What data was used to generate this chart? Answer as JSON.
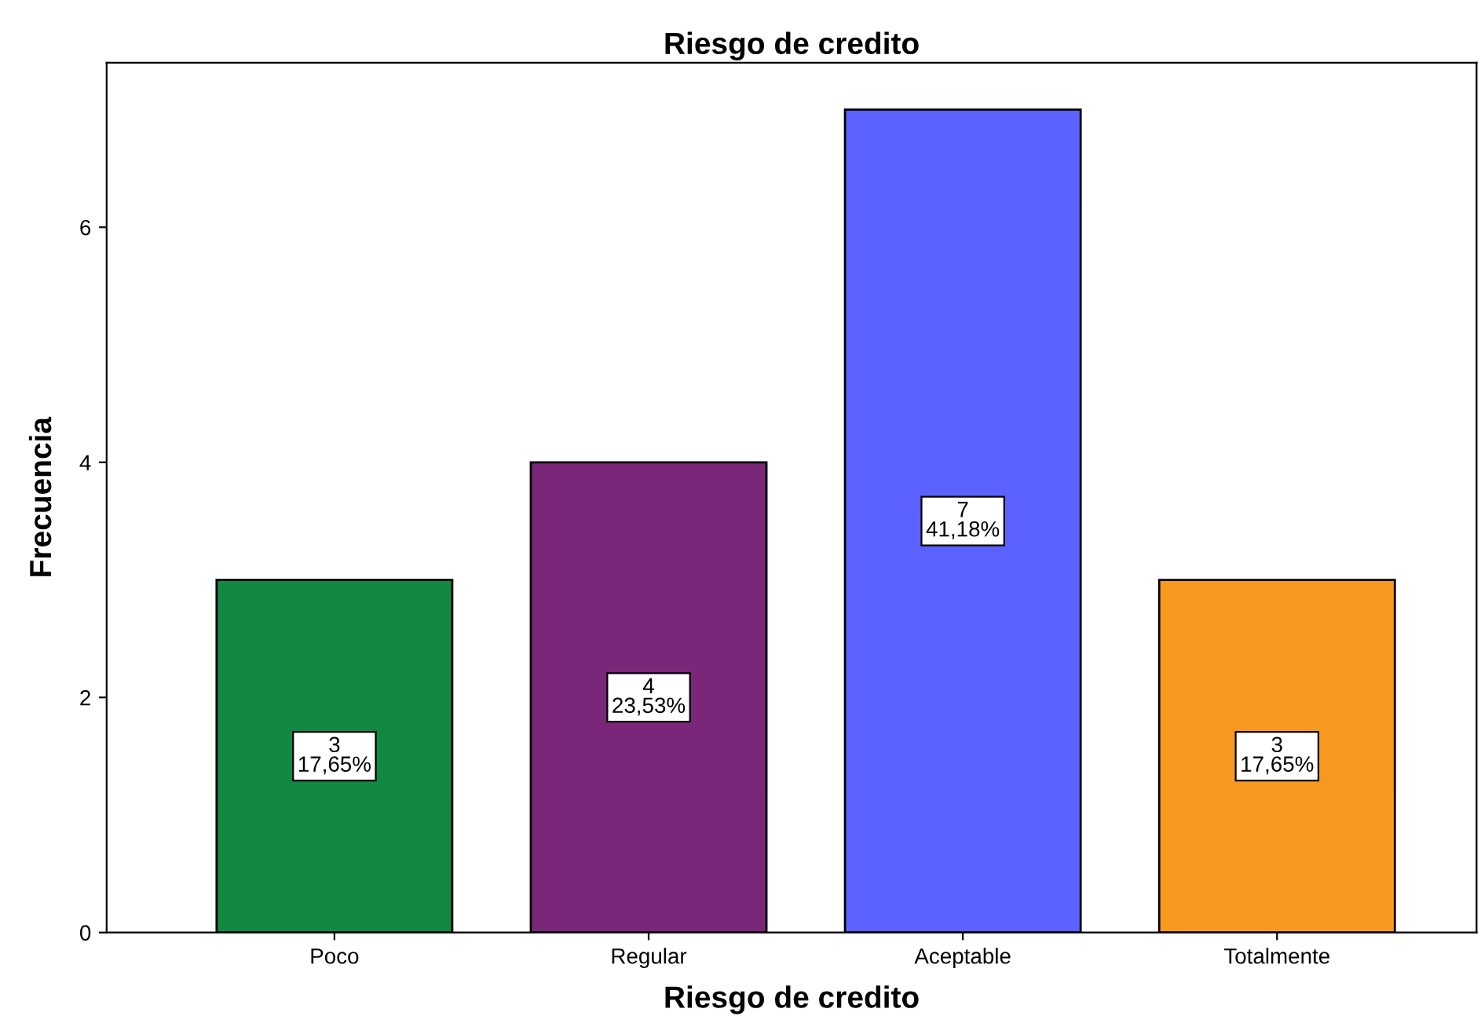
{
  "chart_data": {
    "type": "bar",
    "title": "Riesgo de credito",
    "xlabel": "Riesgo de credito",
    "ylabel": "Frecuencia",
    "categories": [
      "Poco",
      "Regular",
      "Aceptable",
      "Totalmente"
    ],
    "values": [
      3,
      4,
      7,
      3
    ],
    "colors": [
      "#128943",
      "#7b2779",
      "#5c62ff",
      "#f7991f"
    ],
    "value_labels": [
      "3\n17,65%",
      "4\n23,53%",
      "7\n41,18%",
      "3\n17,65%"
    ],
    "ylim": [
      0,
      7.4
    ],
    "yticks": [
      0,
      2,
      4,
      6
    ],
    "grid": false
  }
}
